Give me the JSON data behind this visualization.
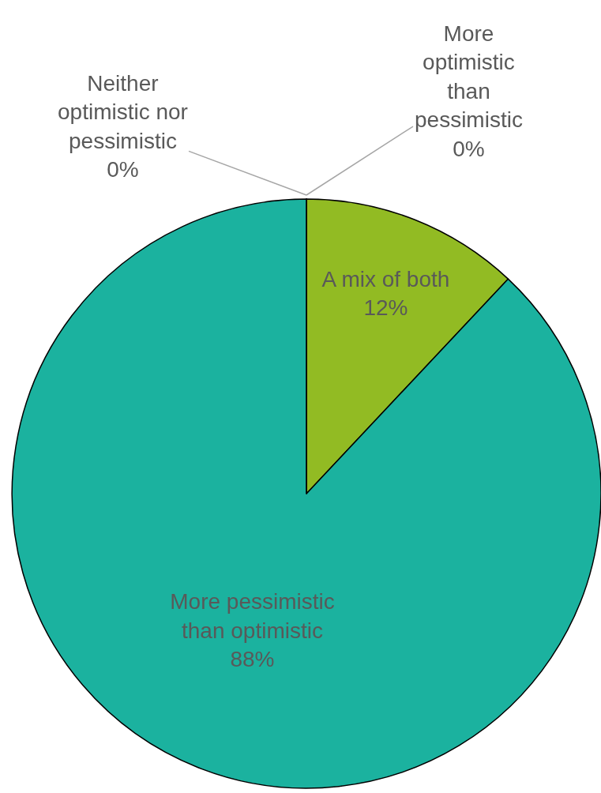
{
  "chart_data": {
    "type": "pie",
    "categories": [
      "More optimistic than pessimistic",
      "A mix of both",
      "More pessimistic than optimistic",
      "Neither optimistic nor pessimistic"
    ],
    "values": [
      0,
      12,
      88,
      0
    ],
    "value_labels": [
      "0%",
      "12%",
      "88%",
      "0%"
    ],
    "colors": [
      "#4f81bd",
      "#92bb23",
      "#1bb29f",
      "#c0504d"
    ],
    "legend": false
  }
}
